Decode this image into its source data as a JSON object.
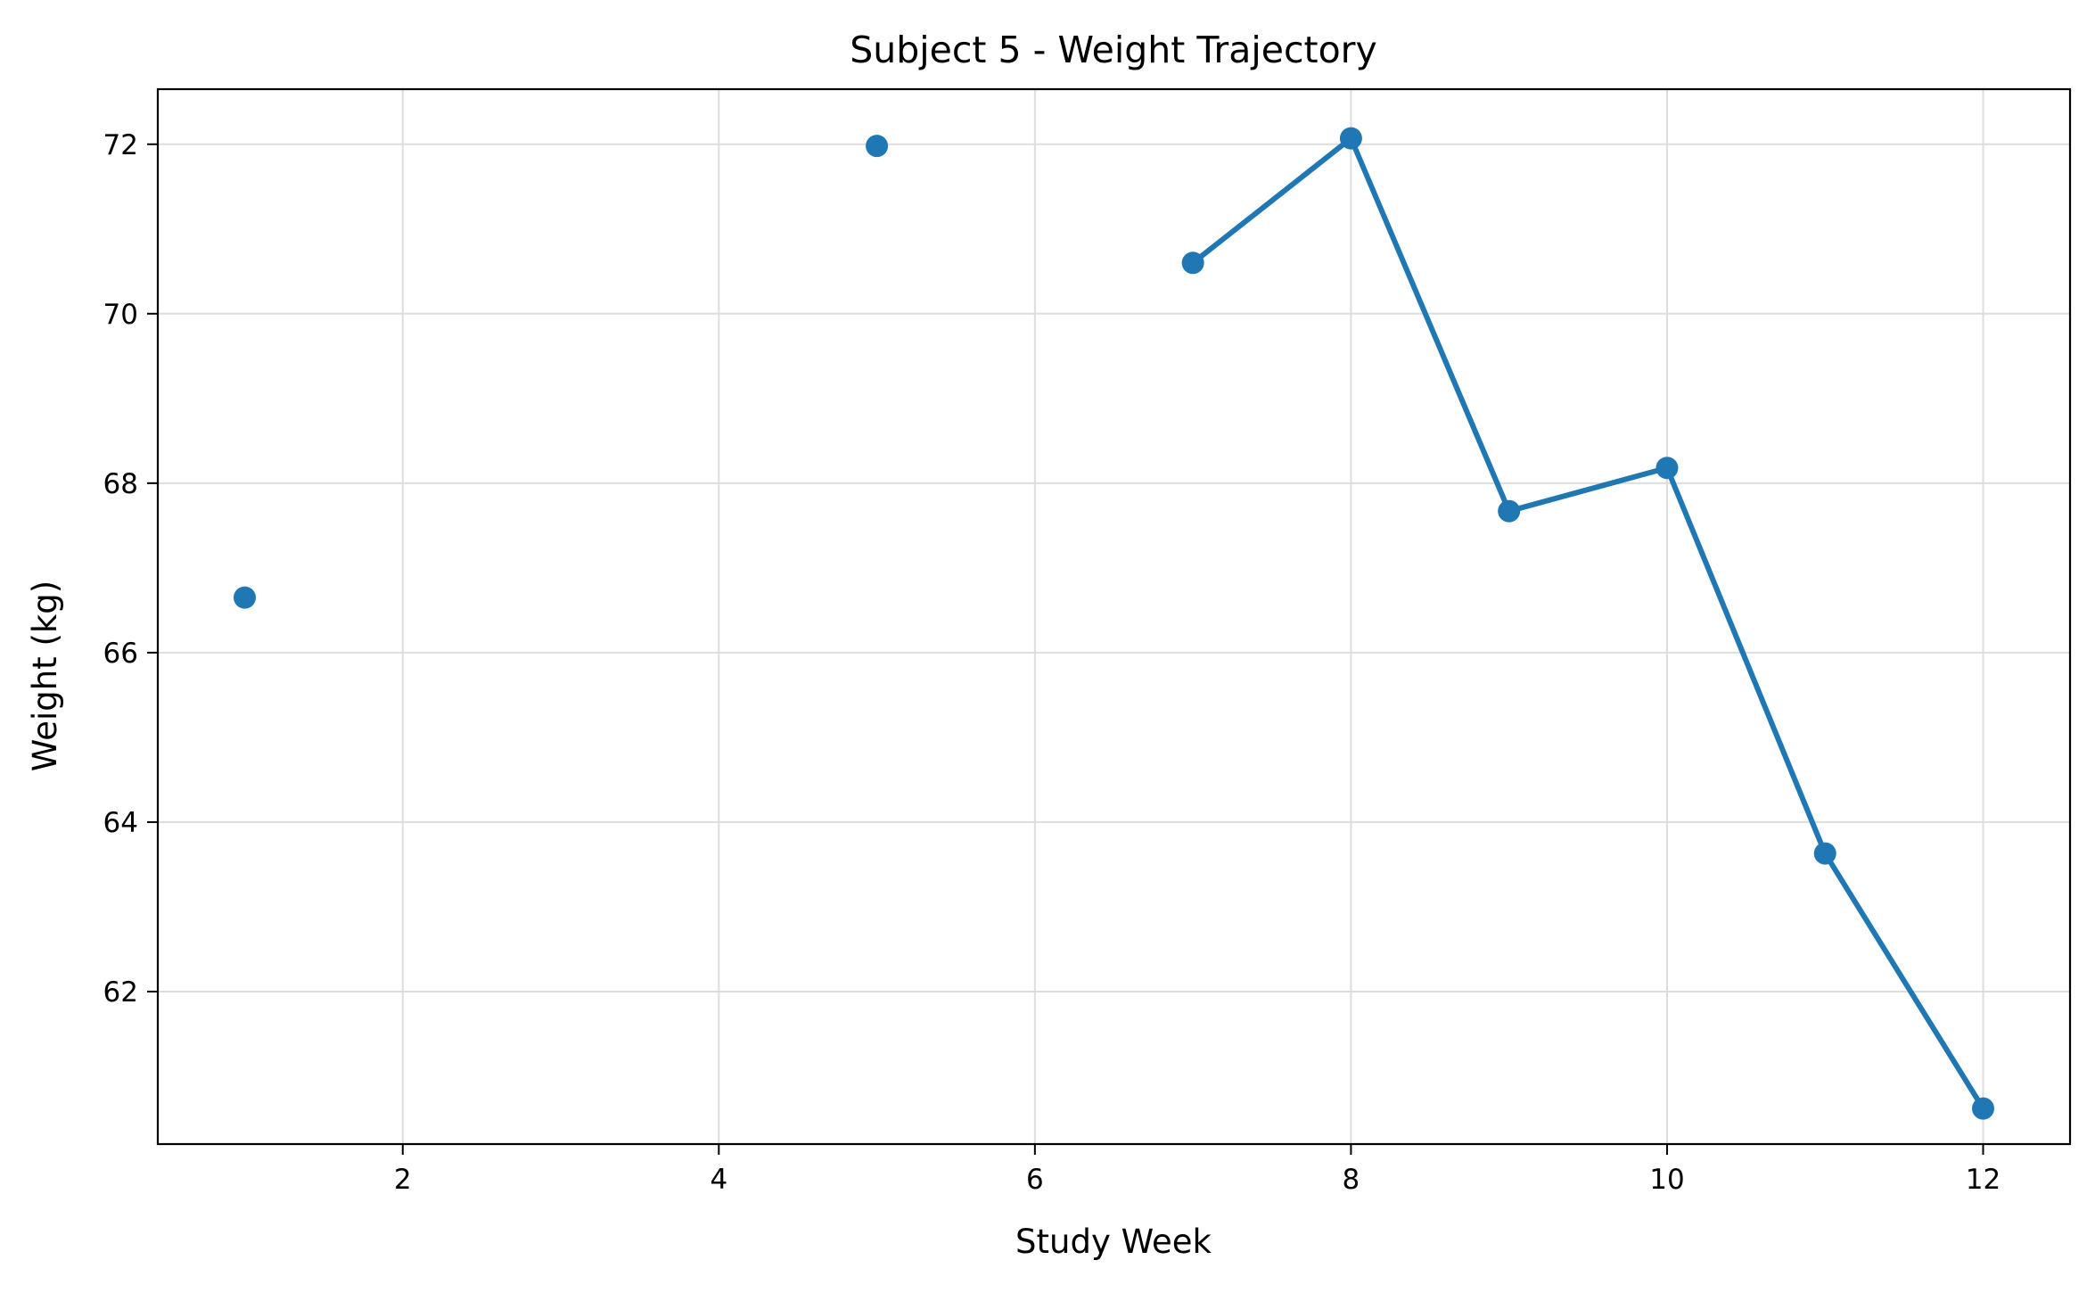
{
  "chart_data": {
    "type": "line",
    "title": "Subject 5 - Weight Trajectory",
    "xlabel": "Study Week",
    "ylabel": "Weight (kg)",
    "xlim": [
      0.45,
      12.55
    ],
    "ylim": [
      60.2,
      72.65
    ],
    "x_ticks": [
      2,
      4,
      6,
      8,
      10,
      12
    ],
    "y_ticks": [
      62,
      64,
      66,
      68,
      70,
      72
    ],
    "grid": true,
    "legend": "none",
    "series": [
      {
        "color": "#1f77b4",
        "points": [
          {
            "x": 1,
            "y": 66.65
          },
          {
            "x": 5,
            "y": 71.98
          },
          {
            "x": 7,
            "y": 70.6
          },
          {
            "x": 8,
            "y": 72.07
          },
          {
            "x": 9,
            "y": 67.67
          },
          {
            "x": 10,
            "y": 68.18
          },
          {
            "x": 11,
            "y": 63.63
          },
          {
            "x": 12,
            "y": 60.62
          }
        ],
        "line_segments": [
          [
            7,
            8,
            9,
            10,
            11,
            12
          ]
        ]
      }
    ]
  }
}
